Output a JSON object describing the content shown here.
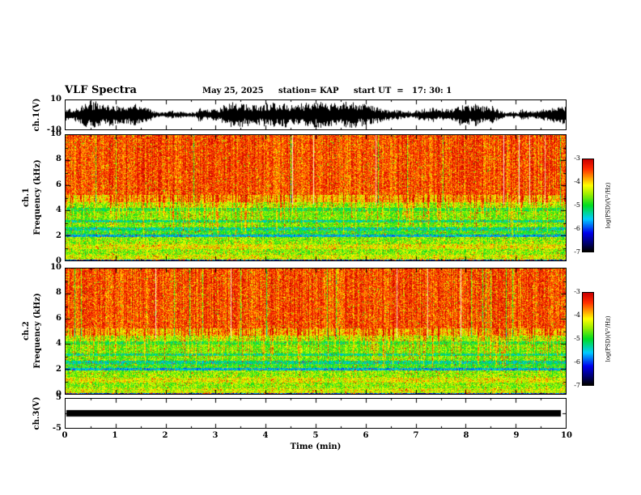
{
  "title": "VLF Spectra",
  "header": {
    "date": "May 25, 2025",
    "station": "station= KAP",
    "start_ut": "start UT  =   17: 30: 1"
  },
  "xaxis": {
    "label": "Time (min)",
    "range": [
      0,
      10
    ],
    "ticks": [
      0,
      1,
      2,
      3,
      4,
      5,
      6,
      7,
      8,
      9,
      10
    ]
  },
  "colorbar": {
    "label": "log(PSD)(V²/Hz)",
    "ticks": [
      -3,
      -4,
      -5,
      -6,
      -7
    ],
    "range": [
      -7,
      -3
    ],
    "stops": [
      [
        0.0,
        "#000000"
      ],
      [
        0.08,
        "#000066"
      ],
      [
        0.2,
        "#0000ee"
      ],
      [
        0.35,
        "#00ccff"
      ],
      [
        0.5,
        "#00dd22"
      ],
      [
        0.62,
        "#99ee00"
      ],
      [
        0.72,
        "#ffff00"
      ],
      [
        0.82,
        "#ff8800"
      ],
      [
        0.9,
        "#ff2a00"
      ],
      [
        1.0,
        "#cc0000"
      ]
    ]
  },
  "chart_data": [
    {
      "type": "line",
      "name": "ch1-waveform",
      "ylabel": "ch.1(V)",
      "ylim": [
        -10,
        10
      ],
      "yticks": [
        10,
        -10
      ],
      "xlim": [
        0,
        10
      ],
      "color": "#000000",
      "description": "continuous broadband noise trace centered on 0 V, envelope varying roughly 2-10 V over the full 10 minutes"
    },
    {
      "type": "heatmap",
      "name": "ch1-spectrogram",
      "ylabel_lines": [
        "ch.1",
        "Frequency (kHz)"
      ],
      "ylim": [
        0,
        10
      ],
      "yticks": [
        0,
        2,
        4,
        6,
        8,
        10
      ],
      "xlim": [
        0,
        10
      ],
      "zlim": [
        -7,
        -3
      ],
      "description": "intense red (high PSD near -3) above ~5 kHz with dense vertical sferic striations and occasional pale gaps; layered green/yellow bands with darker blue horizontal lines near 2 and 3 kHz below 5 kHz; dark row at 0 kHz",
      "bands": [
        [
          0.0,
          0.12,
          0.22,
          0.15
        ],
        [
          0.12,
          0.5,
          0.66,
          0.12
        ],
        [
          0.5,
          0.95,
          0.6,
          0.12
        ],
        [
          0.95,
          1.35,
          0.68,
          0.13
        ],
        [
          1.35,
          1.9,
          0.6,
          0.12
        ],
        [
          1.9,
          2.1,
          0.34,
          0.12
        ],
        [
          2.1,
          2.45,
          0.52,
          0.12
        ],
        [
          2.45,
          2.65,
          0.42,
          0.12
        ],
        [
          2.65,
          3.05,
          0.58,
          0.1
        ],
        [
          3.05,
          3.25,
          0.44,
          0.12
        ],
        [
          3.25,
          3.95,
          0.58,
          0.1
        ],
        [
          3.95,
          4.2,
          0.5,
          0.1
        ],
        [
          4.2,
          4.65,
          0.62,
          0.12
        ],
        [
          4.65,
          5.25,
          0.74,
          0.14
        ],
        [
          5.25,
          10.0,
          0.87,
          0.11
        ]
      ]
    },
    {
      "type": "heatmap",
      "name": "ch2-spectrogram",
      "ylabel_lines": [
        "ch.2",
        "Frequency (kHz)"
      ],
      "ylim": [
        0,
        10
      ],
      "yticks": [
        0,
        2,
        4,
        6,
        8,
        10
      ],
      "xlim": [
        0,
        10
      ],
      "zlim": [
        -7,
        -3
      ],
      "description": "same structure as ch.1: red above ~5 kHz with vertical striations, banded green/yellow below with dark lines near 2 and 3 kHz",
      "bands": [
        [
          0.0,
          0.12,
          0.22,
          0.15
        ],
        [
          0.12,
          0.5,
          0.66,
          0.12
        ],
        [
          0.5,
          0.95,
          0.6,
          0.12
        ],
        [
          0.95,
          1.35,
          0.68,
          0.13
        ],
        [
          1.35,
          1.9,
          0.6,
          0.12
        ],
        [
          1.9,
          2.1,
          0.34,
          0.12
        ],
        [
          2.1,
          2.45,
          0.52,
          0.12
        ],
        [
          2.45,
          2.65,
          0.42,
          0.12
        ],
        [
          2.65,
          3.05,
          0.58,
          0.1
        ],
        [
          3.05,
          3.25,
          0.44,
          0.12
        ],
        [
          3.25,
          3.95,
          0.58,
          0.1
        ],
        [
          3.95,
          4.2,
          0.5,
          0.1
        ],
        [
          4.2,
          4.65,
          0.62,
          0.12
        ],
        [
          4.65,
          5.25,
          0.74,
          0.14
        ],
        [
          5.25,
          10.0,
          0.87,
          0.11
        ]
      ]
    },
    {
      "type": "line",
      "name": "ch3-waveform",
      "ylabel": "ch.3(V)",
      "ylim": [
        -5,
        5
      ],
      "yticks": [
        5,
        -5
      ],
      "xlim": [
        0,
        10
      ],
      "color": "#000000",
      "description": "flat saturated solid black band of roughly ±1 V spanning the full record"
    }
  ]
}
